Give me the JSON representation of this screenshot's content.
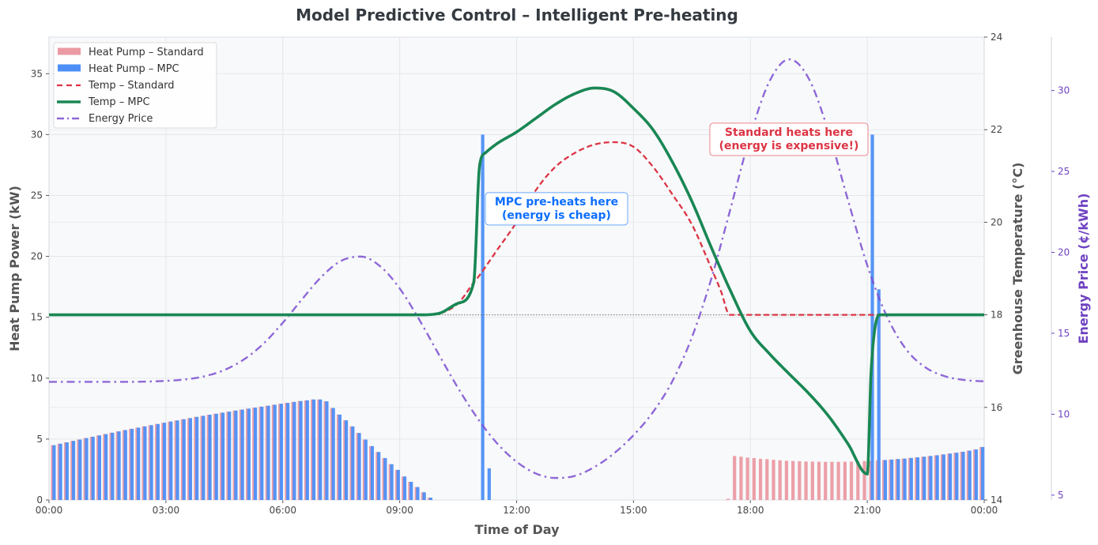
{
  "chart_data": {
    "type": "bar",
    "title": "Model Predictive Control – Intelligent Pre-heating",
    "xlabel": "Time of Day",
    "ylabel": "Heat Pump Power (kW)",
    "ylabel_temp": "Greenhouse Temperature (°C)",
    "ylabel_price": "Energy Price (¢/kWh)",
    "x_range": [
      "00:00",
      "24:00"
    ],
    "x_ticks": [
      "00:00",
      "03:00",
      "06:00",
      "09:00",
      "12:00",
      "15:00",
      "18:00",
      "21:00",
      "00:00"
    ],
    "y_power": {
      "lim": [
        0,
        38
      ],
      "ticks": [
        "0",
        "5",
        "10",
        "15",
        "20",
        "25",
        "30",
        "35"
      ]
    },
    "y_temp": {
      "lim": [
        14,
        24
      ],
      "ticks": [
        "14",
        "16",
        "18",
        "20",
        "22",
        "24"
      ]
    },
    "y_price": {
      "lim": [
        4.7,
        33.3
      ],
      "ticks": [
        "5",
        "10",
        "15",
        "20",
        "25",
        "30"
      ]
    },
    "grid": true,
    "colors": {
      "standard_bar": "#eb9aa3",
      "mpc_bar": "#4d8ff7",
      "temp_standard": "#dc3545",
      "temp_mpc": "#198754",
      "price": "#7b4fd0",
      "price_axis": "#6f42c1",
      "plot_bg": "#f8f9fa"
    },
    "bar_series": [
      {
        "name": "Heat Pump – Standard",
        "color": "#eb9aa3",
        "values": [
          4.5,
          4.62,
          4.73,
          4.85,
          4.96,
          5.08,
          5.19,
          5.3,
          5.41,
          5.52,
          5.63,
          5.74,
          5.84,
          5.94,
          6.04,
          6.14,
          6.24,
          6.34,
          6.44,
          6.53,
          6.63,
          6.72,
          6.82,
          6.91,
          7.0,
          7.08,
          7.17,
          7.25,
          7.34,
          7.42,
          7.5,
          7.58,
          7.66,
          7.74,
          7.82,
          7.9,
          7.97,
          8.05,
          8.12,
          8.18,
          8.25,
          8.25,
          8.1,
          7.55,
          7.01,
          6.54,
          6.04,
          5.5,
          4.96,
          4.42,
          3.94,
          3.44,
          2.94,
          2.47,
          1.93,
          1.49,
          1.06,
          0.63,
          0.19,
          0,
          0,
          0,
          0,
          0,
          0,
          0,
          0,
          0,
          0,
          0,
          0,
          0,
          0,
          0,
          0,
          0,
          0,
          0,
          0,
          0,
          0,
          0,
          0,
          0,
          0,
          0,
          0,
          0,
          0,
          0,
          0,
          0,
          0,
          0,
          0,
          0,
          0,
          0,
          0,
          0,
          0,
          0,
          0,
          0,
          0.1,
          3.61,
          3.55,
          3.48,
          3.44,
          3.38,
          3.35,
          3.3,
          3.26,
          3.22,
          3.2,
          3.18,
          3.16,
          3.15,
          3.14,
          3.13,
          3.13,
          3.13,
          3.14,
          3.15,
          3.17,
          3.19,
          3.22,
          3.25,
          3.28,
          3.32,
          3.36,
          3.4,
          3.45,
          3.5,
          3.55,
          3.61,
          3.67,
          3.74,
          3.81,
          3.88,
          3.96,
          4.05,
          4.15,
          4.35
        ]
      },
      {
        "name": "Heat Pump – MPC",
        "color": "#4d8ff7",
        "values": [
          4.5,
          4.62,
          4.73,
          4.85,
          4.96,
          5.08,
          5.19,
          5.3,
          5.41,
          5.52,
          5.63,
          5.74,
          5.84,
          5.94,
          6.04,
          6.14,
          6.24,
          6.34,
          6.44,
          6.53,
          6.63,
          6.72,
          6.82,
          6.91,
          7.0,
          7.08,
          7.17,
          7.25,
          7.34,
          7.42,
          7.5,
          7.58,
          7.66,
          7.74,
          7.82,
          7.9,
          7.97,
          8.05,
          8.12,
          8.18,
          8.25,
          8.25,
          8.1,
          7.55,
          7.01,
          6.54,
          6.04,
          5.5,
          4.96,
          4.42,
          3.94,
          3.44,
          2.94,
          2.47,
          1.93,
          1.49,
          1.06,
          0.63,
          0.19,
          0,
          0,
          0,
          0,
          0,
          0,
          0,
          30,
          2.6,
          0,
          0,
          0,
          0,
          0,
          0,
          0,
          0,
          0,
          0,
          0,
          0,
          0,
          0,
          0,
          0,
          0,
          0,
          0,
          0,
          0,
          0,
          0,
          0,
          0,
          0,
          0,
          0,
          0,
          0,
          0,
          0,
          0,
          0,
          0,
          0,
          0,
          0,
          0,
          0,
          0,
          0,
          0,
          0,
          0,
          0,
          0,
          0,
          0,
          0,
          0,
          0,
          0,
          0,
          0,
          0,
          0,
          0,
          30,
          17.3,
          3.28,
          3.32,
          3.36,
          3.4,
          3.45,
          3.5,
          3.55,
          3.61,
          3.67,
          3.74,
          3.81,
          3.88,
          3.96,
          4.05,
          4.15,
          4.35
        ]
      }
    ],
    "line_series": [
      {
        "name": "Temp – Standard",
        "axis": "temp",
        "color": "#dc3545",
        "style": "dashed",
        "points": [
          [
            "00:00",
            18.0
          ],
          [
            "05:00",
            18.0
          ],
          [
            "09:30",
            18.0
          ],
          [
            "10:00",
            18.03
          ],
          [
            "10:30",
            18.25
          ],
          [
            "10:54",
            18.7
          ],
          [
            "11:00",
            18.8
          ],
          [
            "11:30",
            19.4
          ],
          [
            "12:00",
            20.0
          ],
          [
            "12:30",
            20.7
          ],
          [
            "13:00",
            21.2
          ],
          [
            "13:30",
            21.5
          ],
          [
            "14:00",
            21.68
          ],
          [
            "14:30",
            21.73
          ],
          [
            "15:00",
            21.63
          ],
          [
            "15:30",
            21.2
          ],
          [
            "16:00",
            20.6
          ],
          [
            "16:30",
            19.95
          ],
          [
            "17:00",
            19.0
          ],
          [
            "17:15",
            18.5
          ],
          [
            "17:28",
            18.0
          ],
          [
            "20:00",
            18.0
          ],
          [
            "24:00",
            18.0
          ]
        ]
      },
      {
        "name": "Temp – MPC",
        "axis": "temp",
        "color": "#198754",
        "style": "solid",
        "points": [
          [
            "00:00",
            18.0
          ],
          [
            "05:00",
            18.0
          ],
          [
            "09:30",
            18.0
          ],
          [
            "10:00",
            18.03
          ],
          [
            "10:30",
            18.25
          ],
          [
            "10:54",
            18.7
          ],
          [
            "11:03",
            21.22
          ],
          [
            "11:12",
            21.5
          ],
          [
            "11:30",
            21.7
          ],
          [
            "12:00",
            21.95
          ],
          [
            "12:30",
            22.25
          ],
          [
            "13:00",
            22.55
          ],
          [
            "13:30",
            22.78
          ],
          [
            "14:00",
            22.9
          ],
          [
            "14:30",
            22.82
          ],
          [
            "15:00",
            22.46
          ],
          [
            "15:30",
            22.0
          ],
          [
            "16:00",
            21.3
          ],
          [
            "16:30",
            20.45
          ],
          [
            "17:00",
            19.45
          ],
          [
            "17:30",
            18.5
          ],
          [
            "18:00",
            17.65
          ],
          [
            "18:30",
            17.15
          ],
          [
            "19:00",
            16.72
          ],
          [
            "19:30",
            16.3
          ],
          [
            "20:00",
            15.82
          ],
          [
            "20:30",
            15.22
          ],
          [
            "21:00",
            14.56
          ],
          [
            "21:06",
            16.8
          ],
          [
            "21:19",
            18.0
          ],
          [
            "22:30",
            18.0
          ],
          [
            "24:00",
            18.0
          ]
        ]
      },
      {
        "name": "Energy Price",
        "axis": "price",
        "color": "#7b4fd0",
        "style": "dashdot",
        "points": [
          [
            "00:00",
            12.0
          ],
          [
            "01:00",
            12.0
          ],
          [
            "02:00",
            12.0
          ],
          [
            "03:00",
            12.06
          ],
          [
            "03:30",
            12.15
          ],
          [
            "04:00",
            12.35
          ],
          [
            "04:30",
            12.73
          ],
          [
            "05:00",
            13.38
          ],
          [
            "05:30",
            14.35
          ],
          [
            "06:00",
            15.65
          ],
          [
            "06:30",
            17.12
          ],
          [
            "07:00",
            18.51
          ],
          [
            "07:30",
            19.48
          ],
          [
            "08:00",
            19.74
          ],
          [
            "08:30",
            19.14
          ],
          [
            "09:00",
            17.77
          ],
          [
            "09:30",
            15.85
          ],
          [
            "10:00",
            13.71
          ],
          [
            "10:30",
            11.61
          ],
          [
            "11:00",
            9.74
          ],
          [
            "11:30",
            8.2
          ],
          [
            "12:00",
            7.06
          ],
          [
            "12:30",
            6.33
          ],
          [
            "13:00",
            6.06
          ],
          [
            "13:30",
            6.19
          ],
          [
            "14:00",
            6.74
          ],
          [
            "14:30",
            7.58
          ],
          [
            "15:00",
            8.7
          ],
          [
            "15:30",
            10.13
          ],
          [
            "16:00",
            12.05
          ],
          [
            "16:30",
            14.76
          ],
          [
            "17:00",
            18.39
          ],
          [
            "17:30",
            22.79
          ],
          [
            "18:00",
            27.24
          ],
          [
            "18:30",
            30.62
          ],
          [
            "19:00",
            31.93
          ],
          [
            "19:30",
            30.73
          ],
          [
            "20:00",
            27.49
          ],
          [
            "20:30",
            23.27
          ],
          [
            "21:00",
            19.2
          ],
          [
            "21:30",
            16.06
          ],
          [
            "22:00",
            14.0
          ],
          [
            "22:30",
            12.88
          ],
          [
            "23:00",
            12.34
          ],
          [
            "23:30",
            12.11
          ],
          [
            "24:00",
            12.03
          ]
        ]
      }
    ],
    "reference_line": {
      "axis": "temp",
      "value": 18,
      "style": "dotted",
      "color": "#777777"
    },
    "annotations": [
      {
        "lines": [
          "MPC pre-heats here",
          "(energy is cheap)"
        ],
        "color": "#0d6efd",
        "at": [
          "12:30",
          20.3
        ]
      },
      {
        "lines": [
          "Standard heats here",
          "(energy is expensive!)"
        ],
        "color": "#dc3545",
        "at": [
          "18:30",
          21.8
        ]
      }
    ],
    "legend": {
      "position": "upper-left",
      "items": [
        {
          "label": "Heat Pump – Standard",
          "kind": "bar",
          "color": "#eb9aa3"
        },
        {
          "label": "Heat Pump – MPC",
          "kind": "bar",
          "color": "#4d8ff7"
        },
        {
          "label": "Temp – Standard",
          "kind": "dashed",
          "color": "#dc3545"
        },
        {
          "label": "Temp – MPC",
          "kind": "solid",
          "color": "#198754"
        },
        {
          "label": "Energy Price",
          "kind": "dashdot",
          "color": "#7b4fd0"
        }
      ]
    }
  }
}
